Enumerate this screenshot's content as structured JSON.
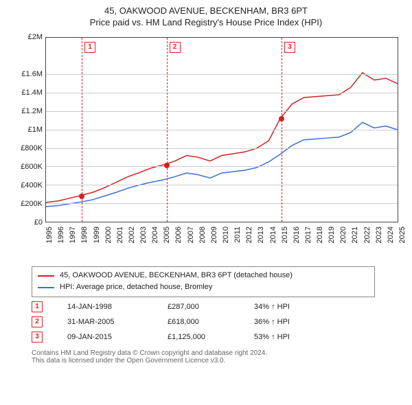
{
  "title": {
    "line1": "45, OAKWOOD AVENUE, BECKENHAM, BR3 6PT",
    "line2": "Price paid vs. HM Land Registry's House Price Index (HPI)",
    "fontsize": 13,
    "color": "#222222"
  },
  "chart": {
    "type": "line",
    "background_color": "#ffffff",
    "grid_color": "#cccccc",
    "border_color": "#444444",
    "x": {
      "min": 1995,
      "max": 2025,
      "ticks": [
        1995,
        1996,
        1997,
        1998,
        1999,
        2000,
        2001,
        2002,
        2003,
        2004,
        2005,
        2006,
        2007,
        2008,
        2009,
        2010,
        2011,
        2012,
        2013,
        2014,
        2015,
        2016,
        2017,
        2018,
        2019,
        2020,
        2021,
        2022,
        2023,
        2024,
        2025
      ],
      "tick_fontsize": 11
    },
    "y": {
      "min": 0,
      "max": 2000000,
      "ticks": [
        0,
        200000,
        400000,
        600000,
        800000,
        1000000,
        1200000,
        1400000,
        1600000,
        2000000
      ],
      "tick_labels": [
        "£0",
        "£200K",
        "£400K",
        "£600K",
        "£800K",
        "£1M",
        "£1.2M",
        "£1.4M",
        "£1.6M",
        "£2M"
      ],
      "tick_fontsize": 11
    },
    "series": [
      {
        "name": "45, OAKWOOD AVENUE, BECKENHAM, BR3 6PT (detached house)",
        "color": "#d42020",
        "line_width": 1.5,
        "x": [
          1995,
          1996,
          1997,
          1998,
          1999,
          2000,
          2001,
          2002,
          2003,
          2004,
          2005,
          2006,
          2007,
          2008,
          2009,
          2010,
          2011,
          2012,
          2013,
          2014,
          2015,
          2016,
          2017,
          2018,
          2019,
          2020,
          2021,
          2022,
          2023,
          2024,
          2025
        ],
        "y": [
          210000,
          225000,
          255000,
          287000,
          320000,
          370000,
          430000,
          490000,
          535000,
          585000,
          618000,
          660000,
          720000,
          700000,
          660000,
          720000,
          740000,
          760000,
          800000,
          880000,
          1125000,
          1280000,
          1350000,
          1360000,
          1370000,
          1380000,
          1460000,
          1620000,
          1540000,
          1560000,
          1500000
        ]
      },
      {
        "name": "HPI: Average price, detached house, Bromley",
        "color": "#3a6fd8",
        "line_width": 1.5,
        "x": [
          1995,
          1996,
          1997,
          1998,
          1999,
          2000,
          2001,
          2002,
          2003,
          2004,
          2005,
          2006,
          2007,
          2008,
          2009,
          2010,
          2011,
          2012,
          2013,
          2014,
          2015,
          2016,
          2017,
          2018,
          2019,
          2020,
          2021,
          2022,
          2023,
          2024,
          2025
        ],
        "y": [
          165000,
          175000,
          195000,
          215000,
          240000,
          280000,
          320000,
          365000,
          400000,
          430000,
          455000,
          490000,
          530000,
          510000,
          475000,
          530000,
          545000,
          560000,
          590000,
          650000,
          735000,
          830000,
          890000,
          900000,
          910000,
          920000,
          970000,
          1080000,
          1020000,
          1040000,
          1000000
        ]
      }
    ],
    "events": [
      {
        "marker": "1",
        "x": 1998.04,
        "date": "14-JAN-1998",
        "price_label": "£287,000",
        "change_label": "34% ↑ HPI",
        "point_y": 287000
      },
      {
        "marker": "2",
        "x": 2005.25,
        "date": "31-MAR-2005",
        "price_label": "£618,000",
        "change_label": "36% ↑ HPI",
        "point_y": 618000
      },
      {
        "marker": "3",
        "x": 2015.02,
        "date": "09-JAN-2015",
        "price_label": "£1,125,000",
        "change_label": "53% ↑ HPI",
        "point_y": 1125000
      }
    ],
    "event_line_color": "#e02020",
    "point_dot_color": "#d42020"
  },
  "legend": {
    "border_color": "#888888",
    "label_fontsize": 11,
    "entries": [
      {
        "color": "#d42020",
        "label": "45, OAKWOOD AVENUE, BECKENHAM, BR3 6PT (detached house)"
      },
      {
        "color": "#3a6fd8",
        "label": "HPI: Average price, detached house, Bromley"
      }
    ]
  },
  "attribution": {
    "line1": "Contains HM Land Registry data © Crown copyright and database right 2024.",
    "line2": "This data is licensed under the Open Government Licence v3.0.",
    "fontsize": 10,
    "color": "#666666"
  }
}
